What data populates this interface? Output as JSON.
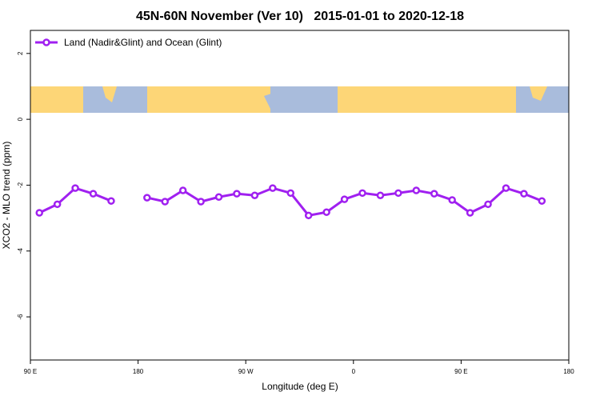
{
  "chart_data": {
    "type": "line",
    "title": "45N-60N November (Ver 10)   2015-01-01 to 2020-12-18",
    "x_label": "Longitude (deg E)",
    "y_label": "XCO2 - MLO trend (ppm)",
    "x": [
      97.5,
      112.5,
      127.5,
      142.5,
      157.5,
      172.5,
      187.5,
      202.5,
      217.5,
      232.5,
      247.5,
      262.5,
      277.5,
      292.5,
      307.5,
      322.5,
      337.5,
      352.5,
      367.5,
      382.5,
      397.5,
      412.5,
      427.5,
      442.5,
      457.5,
      472.5,
      487.5,
      502.5,
      517.5
    ],
    "series": [
      {
        "name": "Land (Nadir&Glint) and Ocean (Glint)",
        "color": "#a020f0",
        "values": [
          -2.84,
          -2.58,
          -2.09,
          -2.26,
          -2.48,
          null,
          -2.38,
          -2.5,
          -2.16,
          -2.5,
          -2.36,
          -2.26,
          -2.31,
          -2.09,
          -2.24,
          -2.92,
          -2.82,
          -2.43,
          -2.24,
          -2.31,
          -2.24,
          -2.16,
          -2.26,
          -2.45,
          -2.84,
          -2.58,
          -2.09,
          -2.26,
          -2.48
        ]
      }
    ],
    "xlim": [
      90,
      540
    ],
    "xticks": [
      {
        "value": 90,
        "label": "90 E"
      },
      180,
      {
        "value": 270,
        "label": "90 W"
      },
      {
        "value": 360,
        "label": "0"
      },
      {
        "value": 450,
        "label": "90 E"
      },
      {
        "value": 540,
        "label": "180"
      }
    ],
    "ylim": [
      -7.31,
      2.7
    ],
    "yticks": [
      2,
      0,
      -2,
      -4,
      -6
    ],
    "legend": "top-left"
  }
}
